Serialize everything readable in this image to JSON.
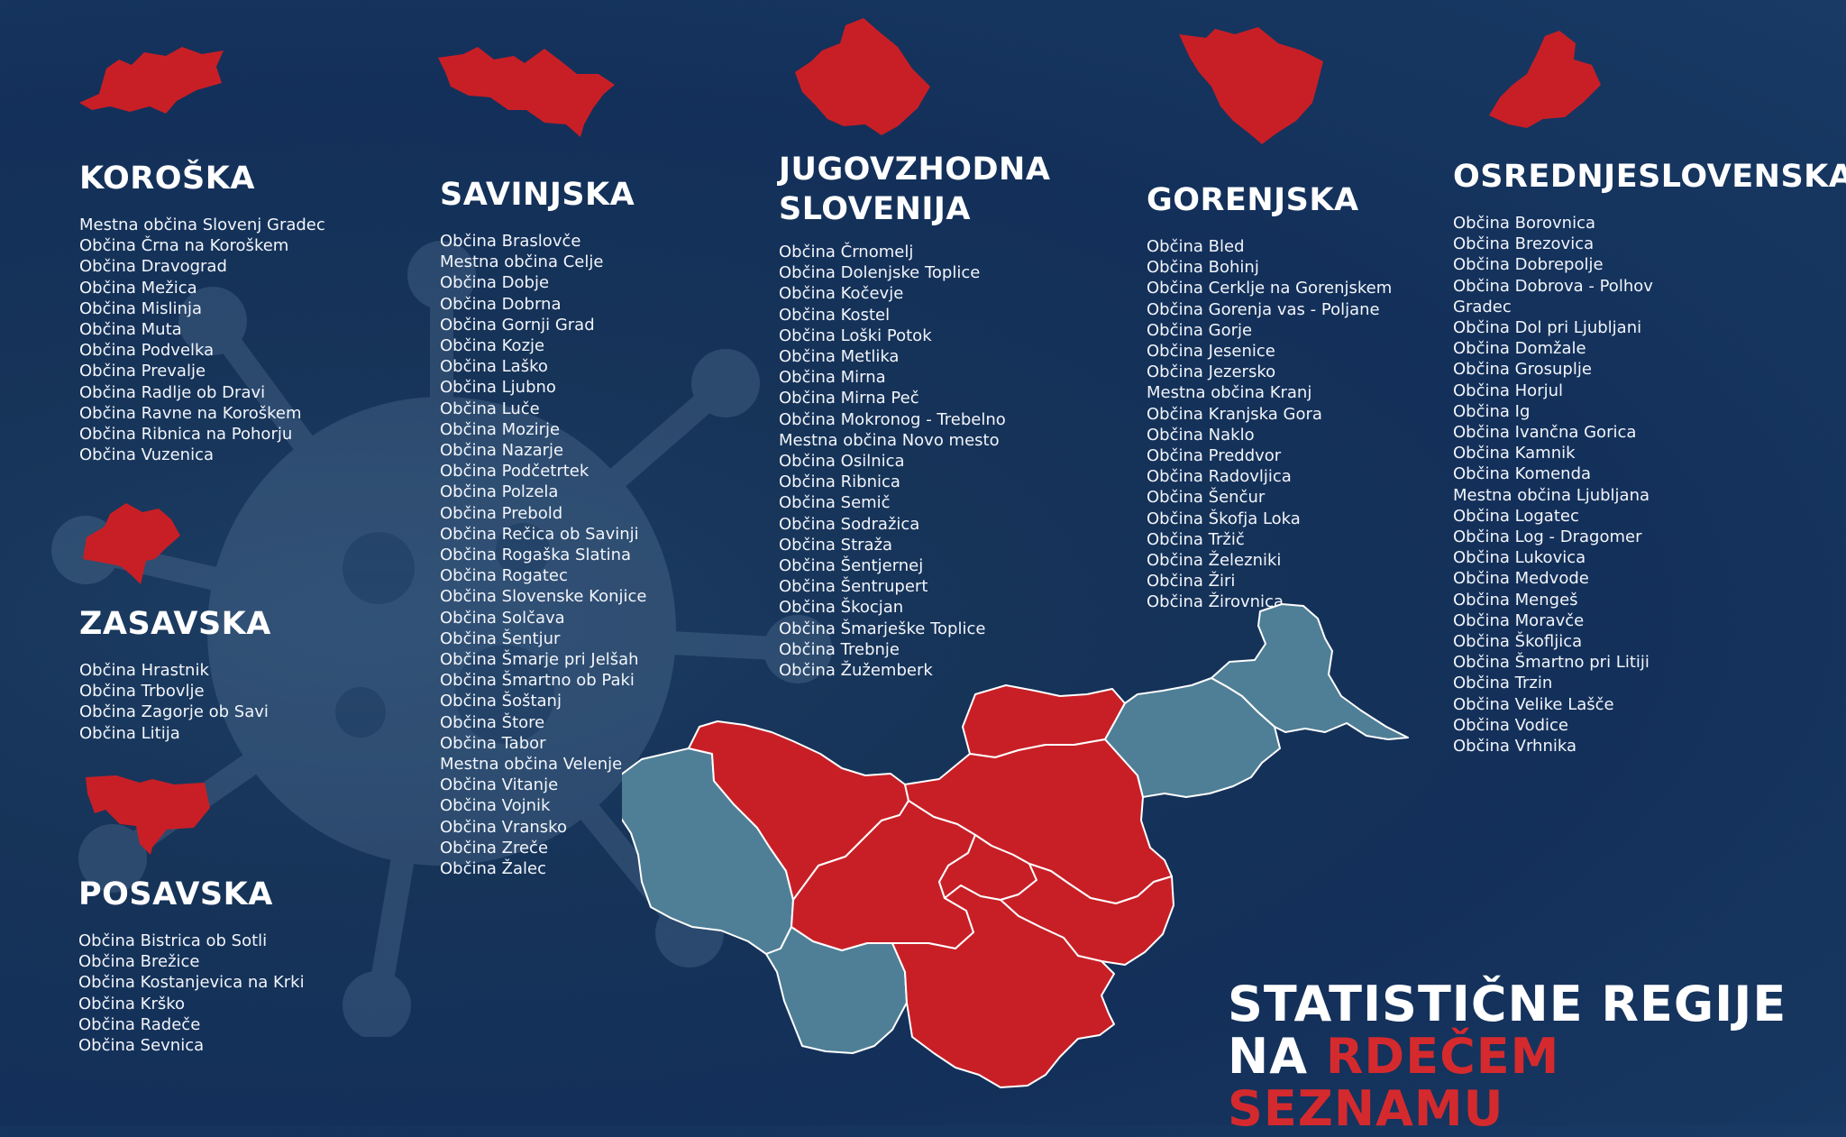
{
  "colors": {
    "red_region": "#c81f26",
    "grey_region": "#4f7f96",
    "background": "#163358",
    "accent_text": "#d42a2e"
  },
  "headline": {
    "line1": "STATISTIČNE REGIJE",
    "line2_prefix": "NA",
    "line2_accent": "RDEČEM SEZNAMU"
  },
  "regions": [
    {
      "name": "KOROŠKA",
      "municipalities": [
        "Mestna občina Slovenj Gradec",
        "Občina Črna na Koroškem",
        "Občina Dravograd",
        "Občina Mežica",
        "Občina Mislinja",
        "Občina Muta",
        "Občina Podvelka",
        "Občina Prevalje",
        "Občina Radlje ob Dravi",
        "Občina Ravne na Koroškem",
        "Občina Ribnica na Pohorju",
        "Občina Vuzenica"
      ]
    },
    {
      "name": "ZASAVSKA",
      "municipalities": [
        "Občina Hrastnik",
        "Občina Trbovlje",
        "Občina Zagorje ob Savi",
        "Občina Litija"
      ]
    },
    {
      "name": "POSAVSKA",
      "municipalities": [
        "Občina Bistrica ob Sotli",
        "Občina Brežice",
        "Občina Kostanjevica na Krki",
        "Občina Krško",
        "Občina Radeče",
        "Občina Sevnica"
      ]
    },
    {
      "name": "SAVINJSKA",
      "municipalities": [
        "Občina Braslovče",
        "Mestna občina Celje",
        "Občina Dobje",
        "Občina Dobrna",
        "Občina Gornji Grad",
        "Občina Kozje",
        "Občina Laško",
        "Občina Ljubno",
        "Občina Luče",
        "Občina Mozirje",
        "Občina Nazarje",
        "Občina Podčetrtek",
        "Občina Polzela",
        "Občina Prebold",
        "Občina Rečica ob Savinji",
        "Občina Rogaška Slatina",
        "Občina Rogatec",
        "Občina Slovenske Konjice",
        "Občina Solčava",
        "Občina Šentjur",
        "Občina Šmarje pri Jelšah",
        "Občina Šmartno ob Paki",
        "Občina Šoštanj",
        "Občina Štore",
        "Občina Tabor",
        "Mestna občina Velenje",
        "Občina Vitanje",
        "Občina Vojnik",
        "Občina Vransko",
        "Občina Zreče",
        "Občina Žalec"
      ]
    },
    {
      "name": "JUGOVZHODNA\nSLOVENIJA",
      "municipalities": [
        "Občina Črnomelj",
        "Občina Dolenjske Toplice",
        "Občina Kočevje",
        "Občina Kostel",
        "Občina Loški Potok",
        "Občina Metlika",
        "Občina Mirna",
        "Občina Mirna Peč",
        "Občina Mokronog - Trebelno",
        "Mestna občina Novo mesto",
        "Občina Osilnica",
        "Občina Ribnica",
        "Občina Semič",
        "Občina Sodražica",
        "Občina Straža",
        "Občina Šentjernej",
        "Občina Šentrupert",
        "Občina Škocjan",
        "Občina Šmarješke Toplice",
        "Občina Trebnje",
        "Občina Žužemberk"
      ]
    },
    {
      "name": "GORENJSKA",
      "municipalities": [
        "Občina Bled",
        "Občina Bohinj",
        "Občina Cerklje na Gorenjskem",
        "Občina Gorenja vas - Poljane",
        "Občina Gorje",
        "Občina Jesenice",
        "Občina Jezersko",
        "Mestna občina Kranj",
        "Občina Kranjska Gora",
        "Občina Naklo",
        "Občina Preddvor",
        "Občina Radovljica",
        "Občina Šenčur",
        "Občina Škofja Loka",
        "Občina Tržič",
        "Občina Železniki",
        "Občina Žiri",
        "Občina Žirovnica"
      ]
    },
    {
      "name": "OSREDNJESLOVENSKA",
      "municipalities": [
        "Občina Borovnica",
        "Občina Brezovica",
        "Občina Dobrepolje",
        "Občina Dobrova - Polhov",
        "Gradec",
        "Občina Dol pri Ljubljani",
        "Občina Domžale",
        "Občina Grosuplje",
        "Občina Horjul",
        "Občina Ig",
        "Občina Ivančna Gorica",
        "Občina Kamnik",
        "Občina Komenda",
        "Mestna občina Ljubljana",
        "Občina Logatec",
        "Občina Log - Dragomer",
        "Občina Lukovica",
        "Občina Medvode",
        "Občina Mengeš",
        "Občina Moravče",
        "Občina Škofljica",
        "Občina Šmartno pri Litiji",
        "Občina Trzin",
        "Občina Velike Lašče",
        "Občina Vodice",
        "Občina Vrhnika"
      ]
    }
  ]
}
